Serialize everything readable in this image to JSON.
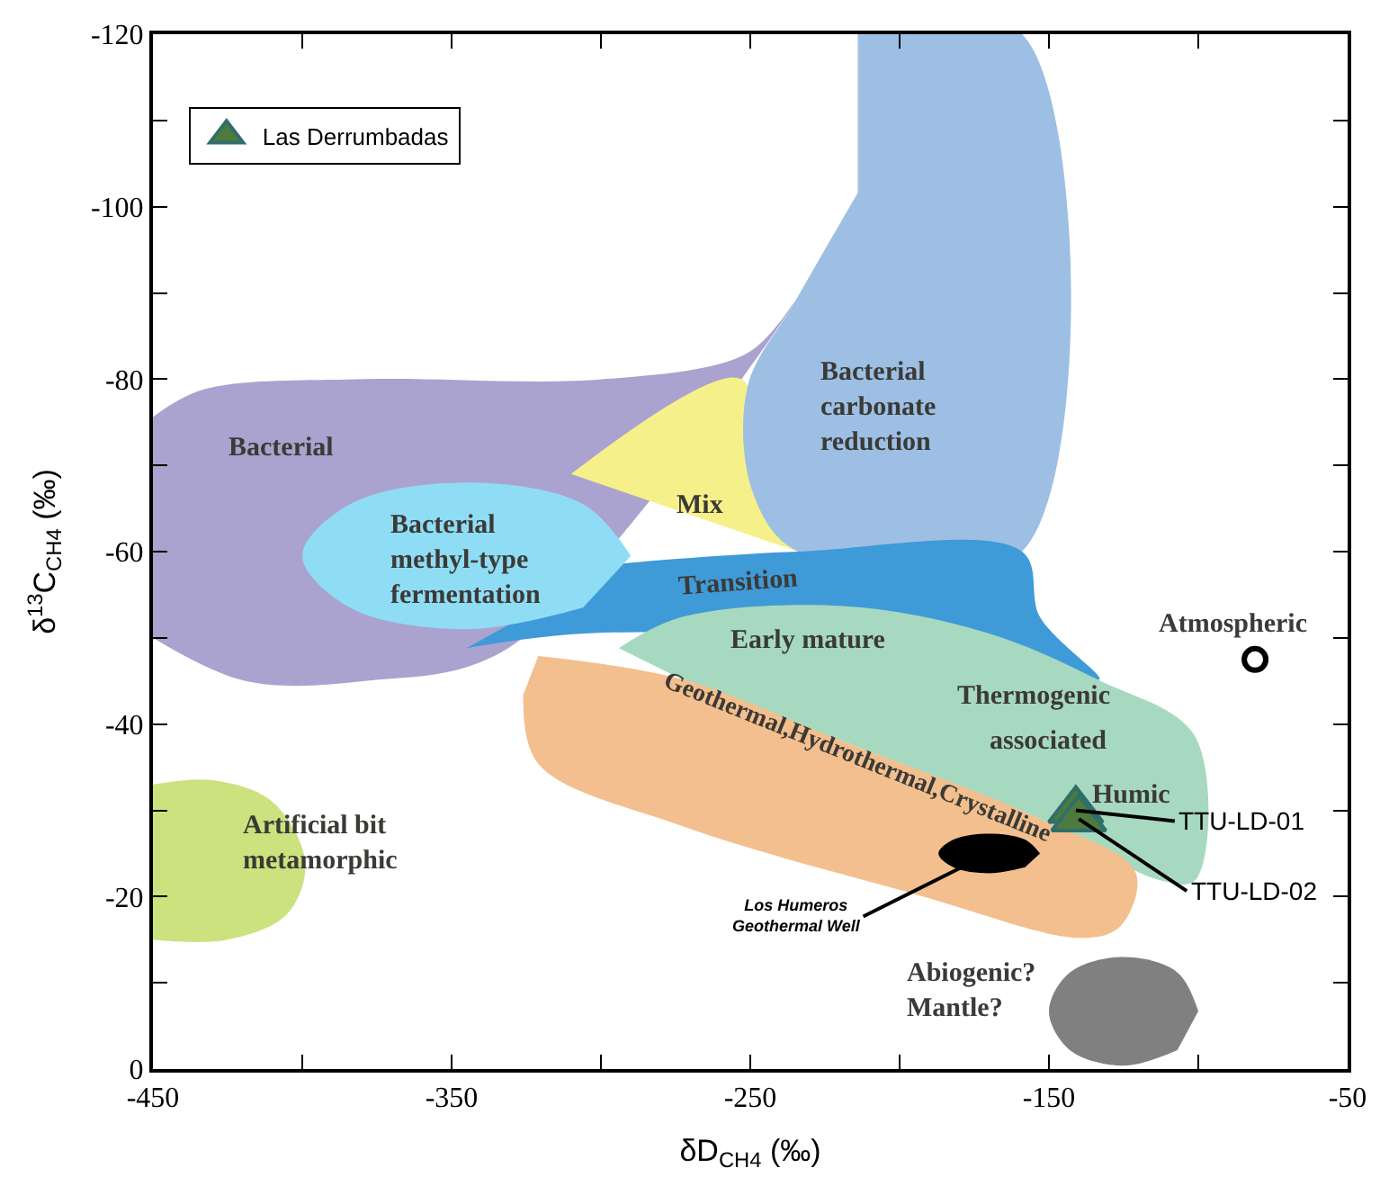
{
  "chart_data": {
    "type": "scatter",
    "xlabel": "δD$_{CH4}$ (‰)",
    "ylabel": "δ$^{13}$C$_{CH4}$ (‰)",
    "xlim": [
      -450,
      -50
    ],
    "ylim": [
      0,
      -120
    ],
    "xticks": [
      -450,
      {
        "value": -400,
        "label": null
      },
      -350,
      {
        "value": -300,
        "label": null
      },
      -250,
      {
        "value": -200,
        "label": null
      },
      -150,
      {
        "value": -100,
        "label": null
      },
      -50
    ],
    "yticks": [
      0,
      {
        "value": -10,
        "label": null
      },
      -20,
      {
        "value": -30,
        "label": null
      },
      -40,
      {
        "value": -50,
        "label": null
      },
      -60,
      {
        "value": -70,
        "label": null
      },
      -80,
      {
        "value": -90,
        "label": null
      },
      -100,
      {
        "value": -110,
        "label": null
      },
      -120
    ],
    "legend": "top left",
    "series": [
      {
        "type": "area",
        "name": "Bacterial",
        "color": "#aaa3cf",
        "x": [
          -450,
          -433,
          -379,
          -299,
          -251,
          -235,
          -331,
          -379,
          -419,
          -450
        ],
        "values": [
          -75.6,
          -78.8,
          -80,
          -80,
          -83,
          -89,
          -48.8,
          -45,
          -45,
          -50
        ]
      },
      {
        "type": "area",
        "name": "Mix",
        "color": "#f6f08a",
        "x": [
          -310,
          -253,
          -249,
          -234
        ],
        "values": [
          -69,
          -80,
          -66.7,
          -60
        ]
      },
      {
        "type": "area",
        "name": "Bacterial\ncarbonate\nreduction",
        "color": "#9dbfe3",
        "x": [
          -214,
          -159,
          -159,
          -234,
          -249,
          -251,
          -235,
          -214
        ],
        "values": [
          -120,
          -120,
          -60,
          -60,
          -66.7,
          -79,
          -89,
          -101.6
        ]
      },
      {
        "type": "area",
        "name": "Transition",
        "color": "#3f9ad8",
        "x": [
          -294,
          -234,
          -159,
          -153,
          -133,
          -153,
          -299,
          -345
        ],
        "values": [
          -58.6,
          -60,
          -60,
          -52.4,
          -45.2,
          -47.9,
          -50.6,
          -48.8
        ]
      },
      {
        "type": "area",
        "name": "Bacterial\nmethyl-type\nfermentation",
        "color": "#8fdcf5",
        "x": [
          -290,
          -306,
          -345,
          -384,
          -400,
          -384,
          -345,
          -306
        ],
        "values": [
          -59.5,
          -65.5,
          -68,
          -65.5,
          -59.5,
          -53.5,
          -51,
          -53.5
        ]
      },
      {
        "type": "area",
        "name": "Early mature",
        "color": "#a7d9c0",
        "x": [
          -294,
          -273,
          -219,
          -171,
          -134,
          -101,
          -101,
          -113,
          -153,
          -219,
          -273
        ],
        "values": [
          -48.8,
          -52.4,
          -53.7,
          -50.6,
          -45.2,
          -38.5,
          -21.9,
          -21.9,
          -29,
          -38,
          -45.2
        ]
      },
      {
        "type": "area",
        "name": "Geothermal,Hydrothermal,Crystalline",
        "color": "#f3bf8e",
        "x": [
          -321,
          -273,
          -219,
          -153,
          -121,
          -126,
          -139,
          -193,
          -273,
          -321,
          -326
        ],
        "values": [
          -47.9,
          -45.2,
          -38,
          -29,
          -22.8,
          -16.6,
          -15.2,
          -20.1,
          -28.2,
          -35.4,
          -43.4
        ]
      },
      {
        "type": "area",
        "name": "Artificial bit\nmetamorphic",
        "color": "#cce27f",
        "x": [
          -450,
          -430,
          -410,
          -399,
          -405,
          -425,
          -450
        ],
        "values": [
          -33,
          -33.5,
          -31,
          -24,
          -18,
          -15,
          -15
        ]
      },
      {
        "type": "area",
        "name": "Abiogenic?\nMantle?",
        "color": "#808080",
        "x": [
          -100,
          -107,
          -125,
          -143,
          -150,
          -143,
          -125,
          -107
        ],
        "values": [
          -6.7,
          -11.2,
          -13,
          -11.2,
          -6.7,
          -2.2,
          -0.4,
          -2.2
        ]
      },
      {
        "type": "area",
        "name": "Los Humeros\nGeothermal Well",
        "color": "#000000",
        "x": [
          -153,
          -158,
          -170,
          -182,
          -187,
          -182,
          -170,
          -158
        ],
        "values": [
          -25,
          -26.6,
          -27.3,
          -26.6,
          -25,
          -23.4,
          -22.7,
          -23.4
        ]
      },
      {
        "marker": "circle",
        "name": "Atmospheric",
        "color": "#000000",
        "x": [
          -81
        ],
        "values": [
          -47.5
        ]
      },
      {
        "marker": "triangle",
        "name": "Las Derrumbadas",
        "color": "#4f7a3e",
        "x": [
          -141,
          -140
        ],
        "values": [
          -30,
          -29
        ]
      }
    ],
    "annotations": [
      "Thermogenic",
      "associated",
      "Humic",
      {
        "text": "TTU-LD-01",
        "x": -141,
        "y": -30
      },
      {
        "text": "TTU-LD-02",
        "x": -140,
        "y": -29
      }
    ]
  }
}
